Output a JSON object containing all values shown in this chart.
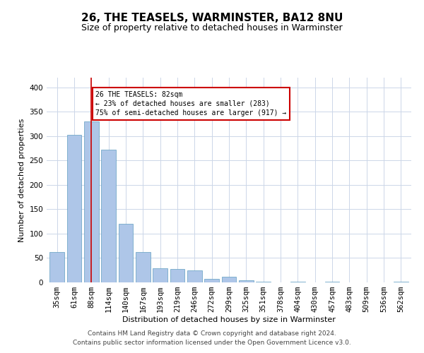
{
  "title": "26, THE TEASELS, WARMINSTER, BA12 8NU",
  "subtitle": "Size of property relative to detached houses in Warminster",
  "xlabel": "Distribution of detached houses by size in Warminster",
  "ylabel": "Number of detached properties",
  "categories": [
    "35sqm",
    "61sqm",
    "88sqm",
    "114sqm",
    "140sqm",
    "167sqm",
    "193sqm",
    "219sqm",
    "246sqm",
    "272sqm",
    "299sqm",
    "325sqm",
    "351sqm",
    "378sqm",
    "404sqm",
    "430sqm",
    "457sqm",
    "483sqm",
    "509sqm",
    "536sqm",
    "562sqm"
  ],
  "values": [
    62,
    303,
    330,
    272,
    120,
    63,
    29,
    28,
    25,
    7,
    11,
    5,
    1,
    0,
    2,
    0,
    2,
    0,
    0,
    0,
    2
  ],
  "bar_color": "#aec6e8",
  "bar_edge_color": "#5f9ec0",
  "highlight_index": 2,
  "highlight_line_color": "#cc0000",
  "ylim": [
    0,
    420
  ],
  "yticks": [
    0,
    50,
    100,
    150,
    200,
    250,
    300,
    350,
    400
  ],
  "annotation_text": "26 THE TEASELS: 82sqm\n← 23% of detached houses are smaller (283)\n75% of semi-detached houses are larger (917) →",
  "annotation_box_edge_color": "#cc0000",
  "footer_line1": "Contains HM Land Registry data © Crown copyright and database right 2024.",
  "footer_line2": "Contains public sector information licensed under the Open Government Licence v3.0.",
  "background_color": "#ffffff",
  "grid_color": "#ccd6e8",
  "title_fontsize": 11,
  "subtitle_fontsize": 9,
  "axis_fontsize": 8,
  "tick_fontsize": 7.5,
  "footer_fontsize": 6.5
}
